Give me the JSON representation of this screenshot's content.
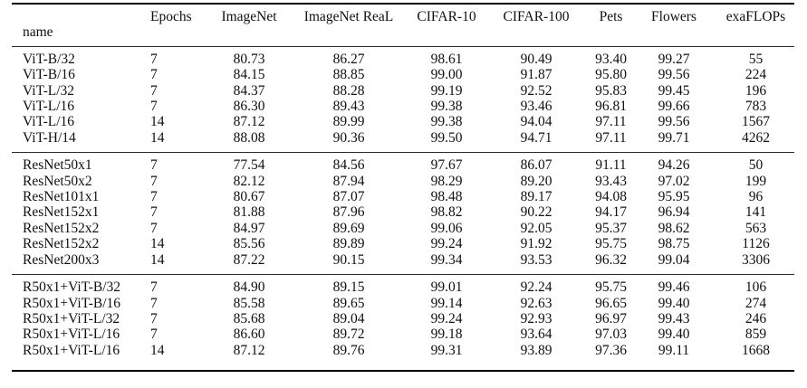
{
  "table": {
    "columns": [
      {
        "key": "name",
        "label": "name"
      },
      {
        "key": "epochs",
        "label": "Epochs"
      },
      {
        "key": "imagenet",
        "label": "ImageNet"
      },
      {
        "key": "imagenet-real",
        "label": "ImageNet ReaL"
      },
      {
        "key": "cifar-10",
        "label": "CIFAR-10"
      },
      {
        "key": "cifar-100",
        "label": "CIFAR-100"
      },
      {
        "key": "pets",
        "label": "Pets"
      },
      {
        "key": "flowers",
        "label": "Flowers"
      },
      {
        "key": "exaflops",
        "label": "exaFLOPs"
      }
    ],
    "groups": [
      {
        "rows": [
          [
            "ViT-B/32",
            "7",
            "80.73",
            "86.27",
            "98.61",
            "90.49",
            "93.40",
            "99.27",
            "55"
          ],
          [
            "ViT-B/16",
            "7",
            "84.15",
            "88.85",
            "99.00",
            "91.87",
            "95.80",
            "99.56",
            "224"
          ],
          [
            "ViT-L/32",
            "7",
            "84.37",
            "88.28",
            "99.19",
            "92.52",
            "95.83",
            "99.45",
            "196"
          ],
          [
            "ViT-L/16",
            "7",
            "86.30",
            "89.43",
            "99.38",
            "93.46",
            "96.81",
            "99.66",
            "783"
          ],
          [
            "ViT-L/16",
            "14",
            "87.12",
            "89.99",
            "99.38",
            "94.04",
            "97.11",
            "99.56",
            "1567"
          ],
          [
            "ViT-H/14",
            "14",
            "88.08",
            "90.36",
            "99.50",
            "94.71",
            "97.11",
            "99.71",
            "4262"
          ]
        ]
      },
      {
        "rows": [
          [
            "ResNet50x1",
            "7",
            "77.54",
            "84.56",
            "97.67",
            "86.07",
            "91.11",
            "94.26",
            "50"
          ],
          [
            "ResNet50x2",
            "7",
            "82.12",
            "87.94",
            "98.29",
            "89.20",
            "93.43",
            "97.02",
            "199"
          ],
          [
            "ResNet101x1",
            "7",
            "80.67",
            "87.07",
            "98.48",
            "89.17",
            "94.08",
            "95.95",
            "96"
          ],
          [
            "ResNet152x1",
            "7",
            "81.88",
            "87.96",
            "98.82",
            "90.22",
            "94.17",
            "96.94",
            "141"
          ],
          [
            "ResNet152x2",
            "7",
            "84.97",
            "89.69",
            "99.06",
            "92.05",
            "95.37",
            "98.62",
            "563"
          ],
          [
            "ResNet152x2",
            "14",
            "85.56",
            "89.89",
            "99.24",
            "91.92",
            "95.75",
            "98.75",
            "1126"
          ],
          [
            "ResNet200x3",
            "14",
            "87.22",
            "90.15",
            "99.34",
            "93.53",
            "96.32",
            "99.04",
            "3306"
          ]
        ]
      },
      {
        "rows": [
          [
            "R50x1+ViT-B/32",
            "7",
            "84.90",
            "89.15",
            "99.01",
            "92.24",
            "95.75",
            "99.46",
            "106"
          ],
          [
            "R50x1+ViT-B/16",
            "7",
            "85.58",
            "89.65",
            "99.14",
            "92.63",
            "96.65",
            "99.40",
            "274"
          ],
          [
            "R50x1+ViT-L/32",
            "7",
            "85.68",
            "89.04",
            "99.24",
            "92.93",
            "96.97",
            "99.43",
            "246"
          ],
          [
            "R50x1+ViT-L/16",
            "7",
            "86.60",
            "89.72",
            "99.18",
            "93.64",
            "97.03",
            "99.40",
            "859"
          ],
          [
            "R50x1+ViT-L/16",
            "14",
            "87.12",
            "89.76",
            "99.31",
            "93.89",
            "97.36",
            "99.11",
            "1668"
          ]
        ]
      }
    ]
  }
}
